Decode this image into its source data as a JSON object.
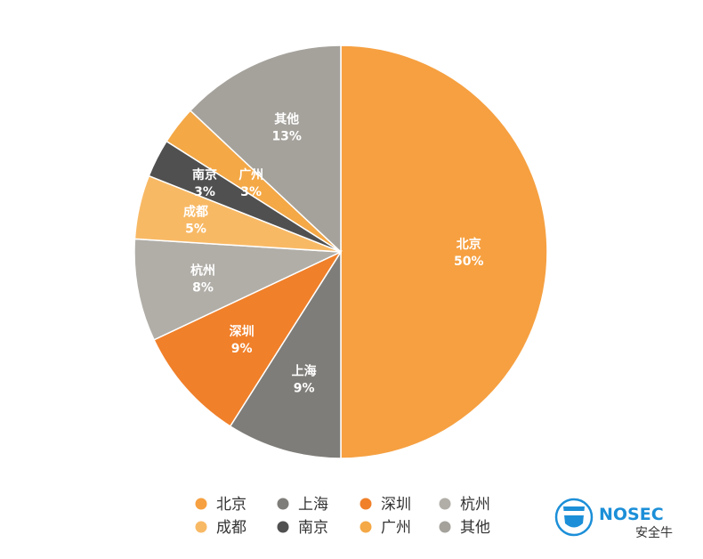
{
  "chart_data": {
    "type": "pie",
    "categories": [
      "北京",
      "上海",
      "深圳",
      "杭州",
      "成都",
      "南京",
      "广州",
      "其他"
    ],
    "values": [
      50,
      9,
      9,
      8,
      5,
      3,
      3,
      13
    ],
    "value_labels": [
      "50%",
      "9%",
      "9%",
      "8%",
      "5%",
      "3%",
      "3%",
      "13%"
    ],
    "colors": [
      "#F6A041",
      "#7F7D79",
      "#F0802A",
      "#B1AEA8",
      "#F8B965",
      "#505050",
      "#F4A846",
      "#A5A29C"
    ],
    "legend": "bottom",
    "start_angle_deg": 0,
    "direction": "clockwise"
  },
  "watermark": {
    "brand": "NOSEC",
    "caption": "安全牛",
    "icon": "shield-icon",
    "color": "#1C8FD8"
  }
}
